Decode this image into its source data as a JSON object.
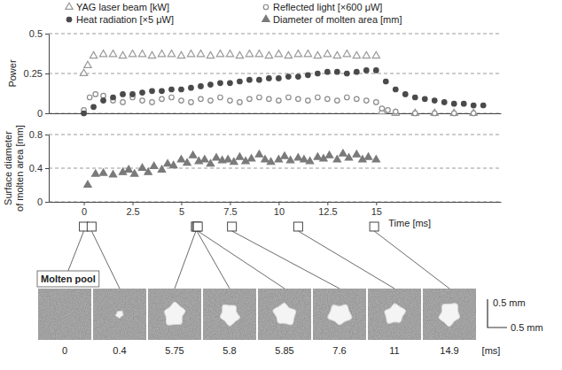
{
  "chart_data": [
    {
      "type": "scatter",
      "y_label": "Power",
      "xlim": [
        -1.8,
        21.4
      ],
      "ylim": [
        0,
        0.5
      ],
      "yticks": [
        0,
        0.25,
        0.5
      ],
      "grid": true,
      "legend": "top",
      "tick_labels": "y",
      "series": [
        {
          "name": "YAG laser beam [kW]",
          "color": "#9a9a9a",
          "marker": "triangle-open",
          "x": [
            0,
            0.2,
            0.5,
            1,
            1.5,
            2,
            2.5,
            3,
            3.5,
            4,
            4.5,
            5,
            5.5,
            6,
            6.5,
            7,
            7.5,
            8,
            8.5,
            9,
            9.5,
            10,
            10.5,
            11,
            11.5,
            12,
            12.5,
            13,
            13.5,
            14,
            14.5,
            15,
            15.3,
            16,
            17,
            18,
            19,
            20
          ],
          "values": [
            0.25,
            0.3,
            0.36,
            0.37,
            0.37,
            0.36,
            0.37,
            0.37,
            0.36,
            0.37,
            0.37,
            0.36,
            0.37,
            0.37,
            0.36,
            0.37,
            0.37,
            0.36,
            0.37,
            0.37,
            0.36,
            0.37,
            0.36,
            0.37,
            0.37,
            0.36,
            0.37,
            0.36,
            0.37,
            0.36,
            0.36,
            0.36,
            0.01,
            0,
            0,
            0,
            0,
            0
          ]
        },
        {
          "name": "Reflected light [×600 μW]",
          "color": "#8c8c8c",
          "marker": "circle-open",
          "x": [
            0,
            0.3,
            0.6,
            1,
            1.5,
            2,
            2.5,
            3,
            3.5,
            4,
            4.5,
            5,
            5.5,
            6,
            6.5,
            7,
            7.5,
            8,
            8.5,
            9,
            9.5,
            10,
            10.5,
            11,
            11.5,
            12,
            12.5,
            13,
            13.5,
            14,
            14.5,
            15,
            15.3,
            15.6,
            16,
            17,
            18,
            19,
            20
          ],
          "values": [
            0.02,
            0.1,
            0.12,
            0.11,
            0.08,
            0.07,
            0.1,
            0.08,
            0.07,
            0.09,
            0.1,
            0.08,
            0.07,
            0.09,
            0.08,
            0.1,
            0.08,
            0.07,
            0.09,
            0.1,
            0.09,
            0.08,
            0.1,
            0.09,
            0.08,
            0.1,
            0.09,
            0.08,
            0.1,
            0.09,
            0.08,
            0.07,
            0.03,
            0.02,
            0.01,
            0,
            0,
            0,
            0
          ]
        },
        {
          "name": "Heat radiation [×5 μW]",
          "color": "#4a4a4a",
          "marker": "circle",
          "x": [
            0,
            0.5,
            1,
            1.5,
            2,
            2.5,
            3,
            3.5,
            4,
            4.5,
            5,
            5.5,
            6,
            6.5,
            7,
            7.5,
            8,
            8.5,
            9,
            9.5,
            10,
            10.5,
            11,
            11.5,
            12,
            12.5,
            13,
            13.5,
            14,
            14.5,
            15,
            15.5,
            16,
            16.5,
            17,
            17.5,
            18,
            18.5,
            19,
            19.5,
            20,
            20.5
          ],
          "values": [
            0,
            0.04,
            0.08,
            0.1,
            0.12,
            0.12,
            0.13,
            0.14,
            0.14,
            0.15,
            0.15,
            0.16,
            0.17,
            0.18,
            0.19,
            0.19,
            0.2,
            0.21,
            0.21,
            0.22,
            0.22,
            0.23,
            0.23,
            0.24,
            0.25,
            0.26,
            0.26,
            0.25,
            0.26,
            0.27,
            0.27,
            0.2,
            0.15,
            0.12,
            0.1,
            0.09,
            0.08,
            0.07,
            0.06,
            0.06,
            0.05,
            0.05
          ]
        }
      ]
    },
    {
      "type": "scatter",
      "y_label": "Surface diameter of molten area [mm]",
      "x_label": "Time [ms]",
      "xlim": [
        -1.8,
        21.4
      ],
      "xticks": [
        0,
        2.5,
        5,
        7.5,
        10,
        12.5,
        15
      ],
      "ylim": [
        0,
        0.8
      ],
      "yticks": [
        0,
        0.4,
        0.8
      ],
      "grid": true,
      "legend": "top",
      "series": [
        {
          "name": "Diameter of molten area [mm]",
          "color": "#7a7a7a",
          "marker": "triangle",
          "x": [
            0.2,
            0.6,
            1,
            1.5,
            2,
            2.3,
            2.6,
            3,
            3.3,
            3.6,
            4,
            4.3,
            4.6,
            5,
            5.3,
            5.6,
            5.9,
            6.2,
            6.5,
            6.8,
            7.1,
            7.4,
            7.7,
            8,
            8.3,
            8.6,
            9,
            9.3,
            9.6,
            10,
            10.3,
            10.6,
            11,
            11.3,
            11.6,
            12,
            12.3,
            12.6,
            13,
            13.3,
            13.6,
            14,
            14.3,
            14.6,
            15
          ],
          "values": [
            0.2,
            0.33,
            0.34,
            0.32,
            0.35,
            0.38,
            0.33,
            0.4,
            0.35,
            0.42,
            0.38,
            0.45,
            0.43,
            0.5,
            0.46,
            0.55,
            0.48,
            0.5,
            0.45,
            0.52,
            0.49,
            0.5,
            0.47,
            0.53,
            0.48,
            0.51,
            0.56,
            0.5,
            0.47,
            0.5,
            0.54,
            0.49,
            0.52,
            0.5,
            0.48,
            0.53,
            0.51,
            0.55,
            0.5,
            0.57,
            0.52,
            0.56,
            0.5,
            0.53,
            0.5
          ]
        }
      ],
      "snapshots": {
        "title": "Molten pool",
        "times": [
          0,
          0.4,
          5.75,
          5.8,
          5.85,
          7.6,
          11,
          14.9
        ],
        "unit": "[ms]",
        "scale_labels": [
          "0.5 mm",
          "0.5 mm"
        ]
      }
    }
  ]
}
